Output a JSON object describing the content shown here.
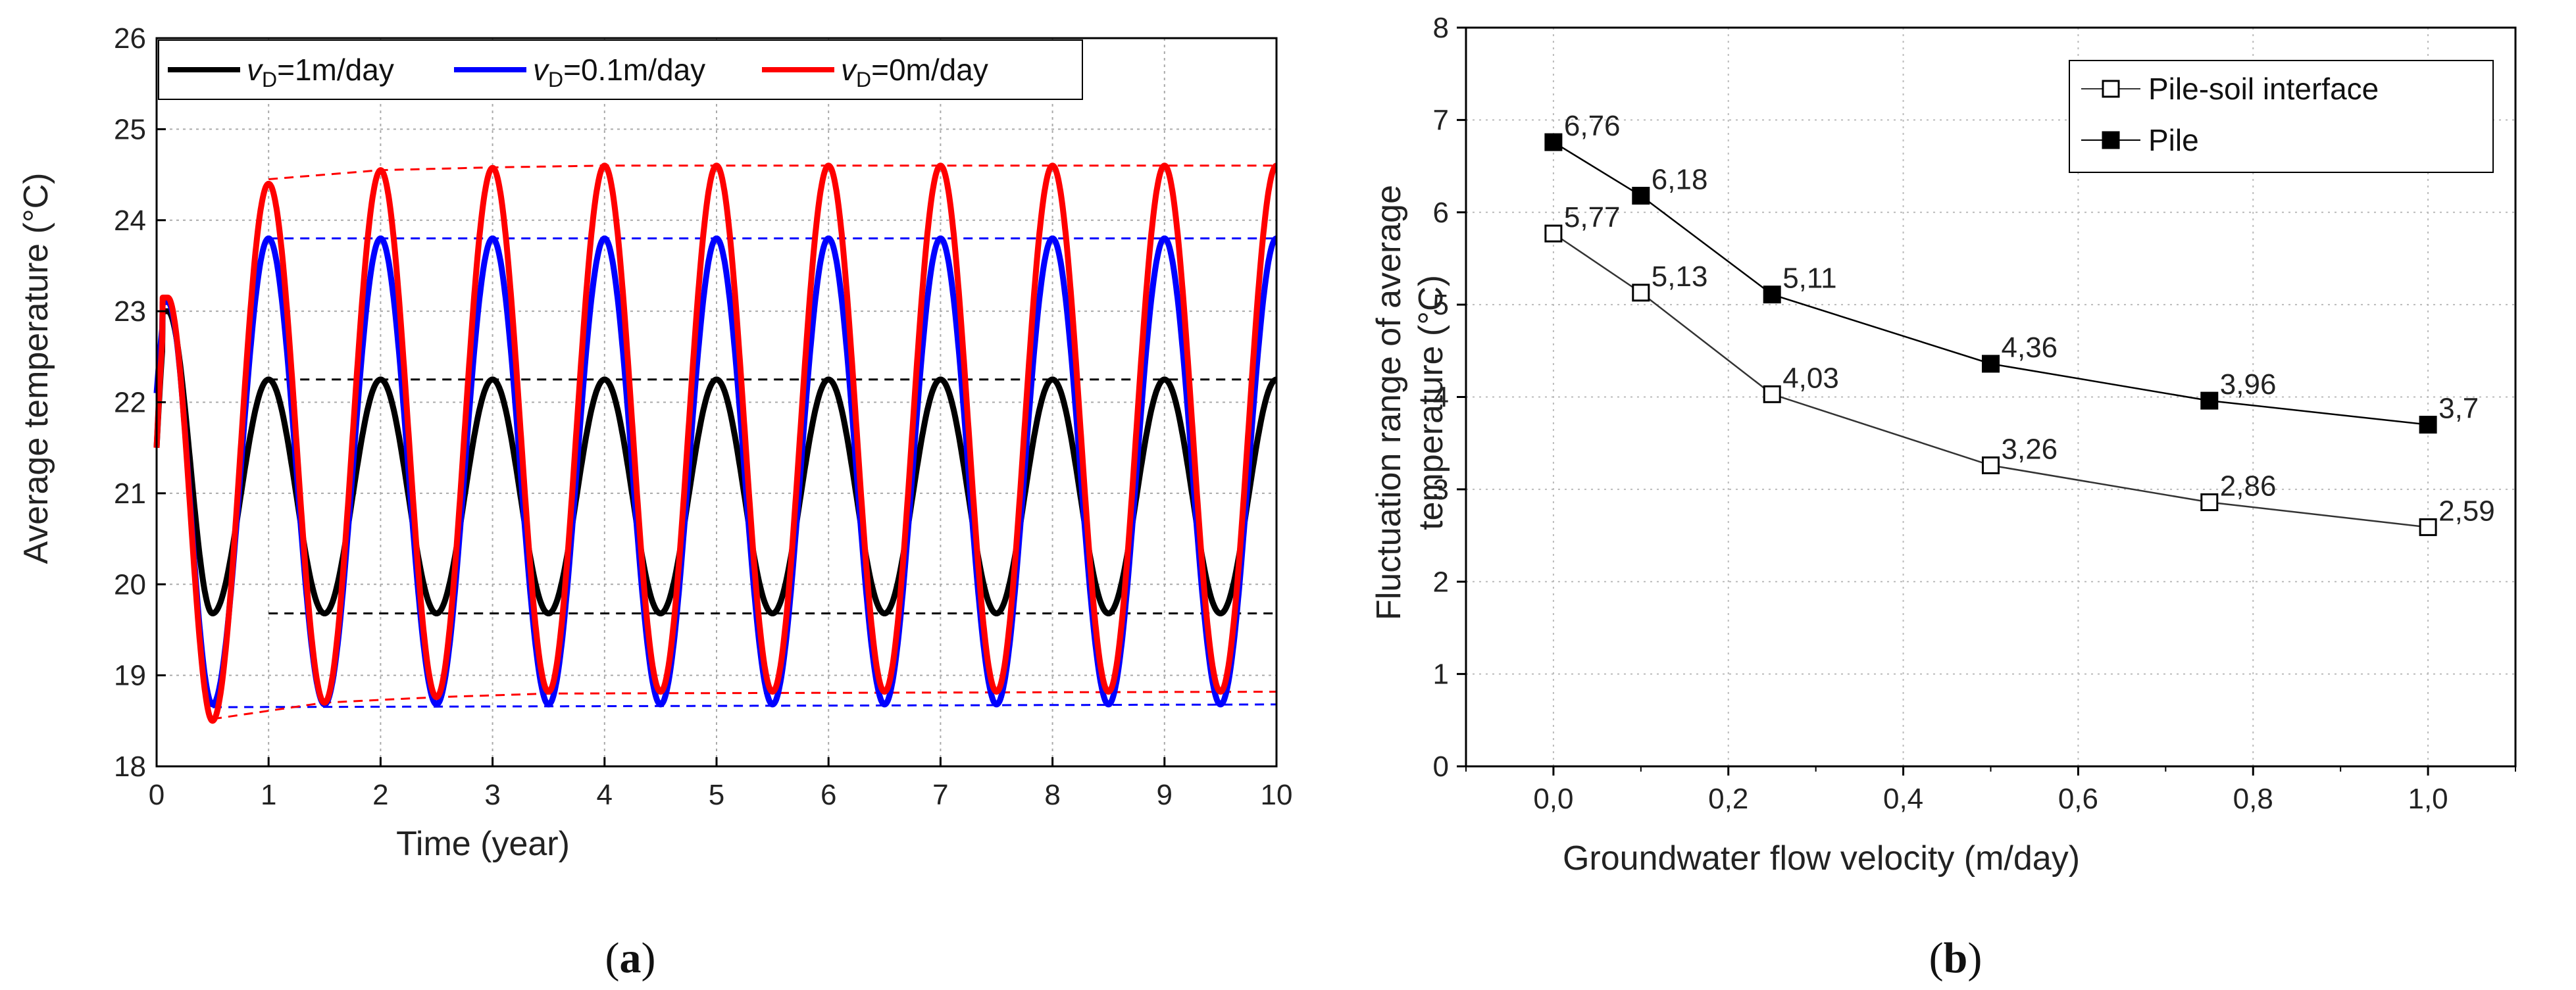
{
  "chart_data": [
    {
      "id": "a",
      "type": "line",
      "caption": {
        "open": "(",
        "letter": "a",
        "close": ")"
      },
      "xlabel": "Time (year)",
      "ylabel": "Average temperature (°C)",
      "xlim": [
        0,
        10
      ],
      "ylim": [
        18,
        26
      ],
      "xticks": [
        0,
        1,
        2,
        3,
        4,
        5,
        6,
        7,
        8,
        9,
        10
      ],
      "yticks": [
        18,
        19,
        20,
        21,
        22,
        23,
        24,
        25,
        26
      ],
      "grid": true,
      "legend_position": "top",
      "series": [
        {
          "name": "v_D=1m/day",
          "label_var": "v",
          "label_sub": "D",
          "label_rest": "=1m/day",
          "color": "#000000",
          "start": 21.5,
          "peak": 23.0,
          "max": 22.25,
          "min": 19.68,
          "envelope_max": [
            [
              1,
              22.25
            ],
            [
              10,
              22.25
            ]
          ],
          "envelope_min": [
            [
              1,
              19.68
            ],
            [
              10,
              19.68
            ]
          ]
        },
        {
          "name": "v_D=0.1m/day",
          "label_var": "v",
          "label_sub": "D",
          "label_rest": "=0.1m/day",
          "color": "#0000ff",
          "start": 22.1,
          "peak": 23.1,
          "max": 23.8,
          "min": 18.68,
          "envelope_max": [
            [
              1,
              23.8
            ],
            [
              10,
              23.8
            ]
          ],
          "envelope_min": [
            [
              0.5,
              18.65
            ],
            [
              10,
              18.68
            ]
          ]
        },
        {
          "name": "v_D=0m/day",
          "label_var": "v",
          "label_sub": "D",
          "label_rest": "=0m/day",
          "color": "#ff0000",
          "start": 21.5,
          "peak": 23.15,
          "max_first": 24.4,
          "max": 24.6,
          "min_first": 18.5,
          "min": 18.82,
          "envelope_max": [
            [
              1,
              24.45
            ],
            [
              2,
              24.55
            ],
            [
              3,
              24.58
            ],
            [
              4,
              24.6
            ],
            [
              10,
              24.6
            ]
          ],
          "envelope_min": [
            [
              0.5,
              18.52
            ],
            [
              1.5,
              18.7
            ],
            [
              2.5,
              18.76
            ],
            [
              3.5,
              18.8
            ],
            [
              10,
              18.82
            ]
          ]
        }
      ]
    },
    {
      "id": "b",
      "type": "line",
      "caption": {
        "open": "(",
        "letter": "b",
        "close": ")"
      },
      "xlabel": "Groundwater flow velocity (m/day)",
      "ylabel": [
        "Fluctuation range of average",
        "temperature (°C)"
      ],
      "xlim": [
        -0.1,
        1.1
      ],
      "ylim": [
        0,
        8
      ],
      "xticks": [
        "0,0",
        "0,2",
        "0,4",
        "0,6",
        "0,8",
        "1,0"
      ],
      "xtick_values": [
        0,
        0.2,
        0.4,
        0.6,
        0.8,
        1.0
      ],
      "yticks": [
        0,
        1,
        2,
        3,
        4,
        5,
        6,
        7,
        8
      ],
      "grid": true,
      "legend_position": "top-right",
      "x": [
        0,
        0.1,
        0.25,
        0.5,
        0.75,
        1.0
      ],
      "series": [
        {
          "name": "Pile-soil interface",
          "marker": "open-square",
          "color": "#333333",
          "values": [
            5.77,
            5.13,
            4.03,
            3.26,
            2.86,
            2.59
          ],
          "labels": [
            "5,77",
            "5,13",
            "4,03",
            "3,26",
            "2,86",
            "2,59"
          ]
        },
        {
          "name": "Pile",
          "marker": "filled-square",
          "color": "#000000",
          "values": [
            6.76,
            6.18,
            5.11,
            4.36,
            3.96,
            3.7
          ],
          "labels": [
            "6,76",
            "6,18",
            "5,11",
            "4,36",
            "3,96",
            "3,7"
          ]
        }
      ]
    }
  ]
}
